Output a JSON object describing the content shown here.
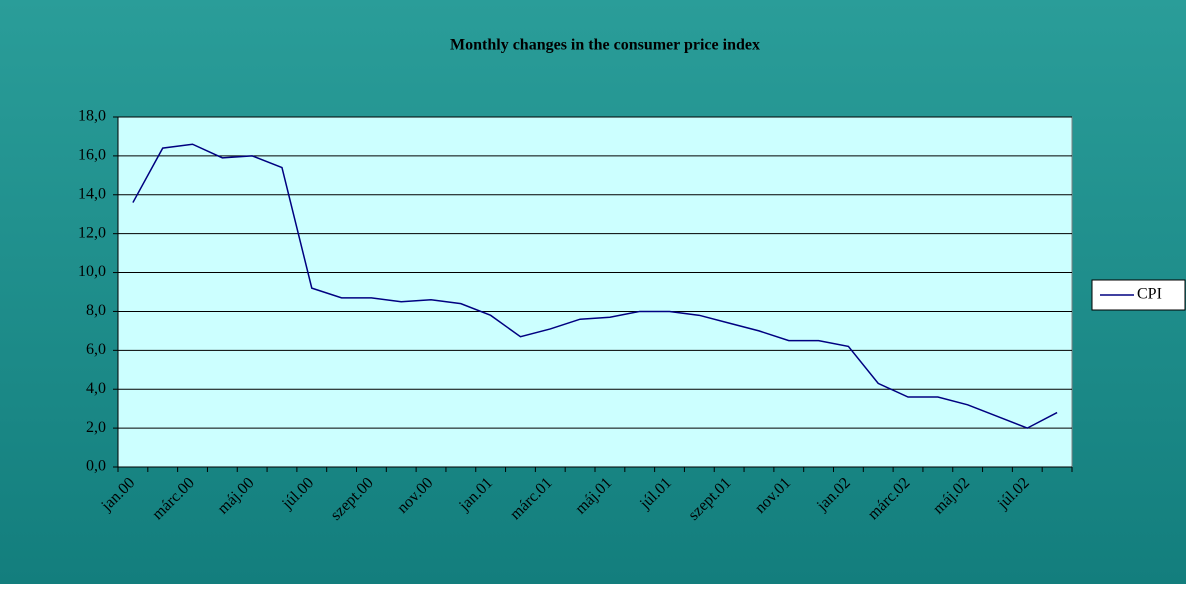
{
  "chart_data": {
    "type": "line",
    "title": "Monthly changes in the consumer price index",
    "categories": [
      "jan.00",
      null,
      "márc.00",
      null,
      "máj.00",
      null,
      "júl.00",
      null,
      "szept.00",
      null,
      "nov.00",
      null,
      "jan.01",
      null,
      "márc.01",
      null,
      "máj.01",
      null,
      "júl.01",
      null,
      "szept.01",
      null,
      "nov.01",
      null,
      "jan.02",
      null,
      "márc.02",
      null,
      "máj.02",
      null,
      "júl.02",
      null
    ],
    "series": [
      {
        "name": "CPI",
        "color": "#000080",
        "values": [
          13.6,
          16.4,
          16.6,
          15.9,
          16.0,
          15.4,
          9.2,
          8.7,
          8.7,
          8.5,
          8.6,
          8.4,
          7.8,
          6.7,
          7.1,
          7.6,
          7.7,
          8.0,
          8.0,
          7.8,
          7.4,
          7.0,
          6.5,
          6.5,
          6.2,
          4.3,
          3.6,
          3.6,
          3.2,
          2.6,
          2.0,
          2.8
        ]
      }
    ],
    "ylim": [
      0,
      18
    ],
    "yticks": [
      {
        "value": 0,
        "label": "0,0"
      },
      {
        "value": 2,
        "label": "2,0"
      },
      {
        "value": 4,
        "label": "4,0"
      },
      {
        "value": 6,
        "label": "6,0"
      },
      {
        "value": 8,
        "label": "8,0"
      },
      {
        "value": 10,
        "label": "10,0"
      },
      {
        "value": 12,
        "label": "12,0"
      },
      {
        "value": 14,
        "label": "14,0"
      },
      {
        "value": 16,
        "label": "16,0"
      },
      {
        "value": 18,
        "label": "18,0"
      }
    ],
    "grid": true,
    "legend": "right"
  }
}
